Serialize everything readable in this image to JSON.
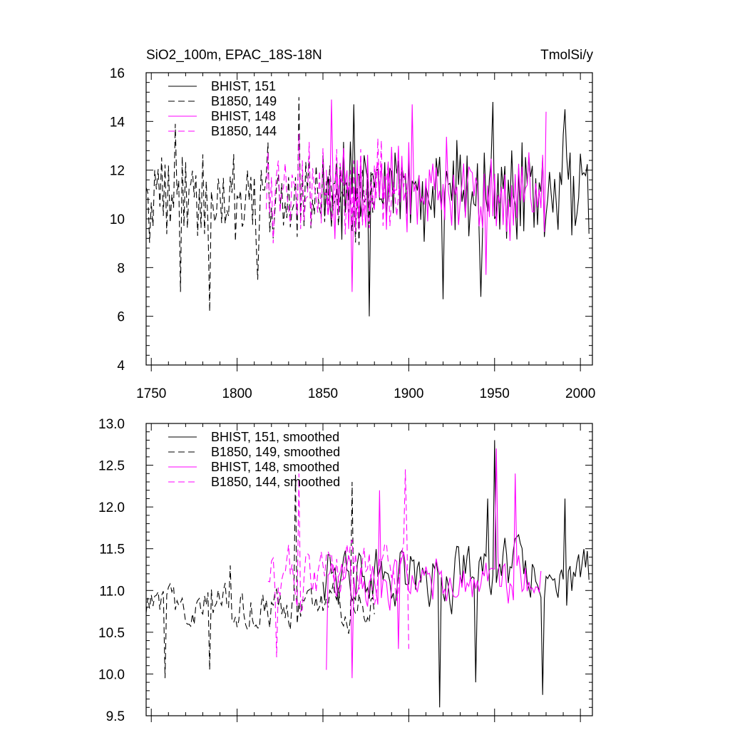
{
  "title_left": "SiO2_100m, EPAC_18S-18N",
  "title_right": "TmolSi/y",
  "colors": {
    "black": "#000000",
    "magenta": "#ff00ff"
  },
  "chart_data": [
    {
      "type": "line",
      "title": "SiO2_100m, EPAC_18S-18N",
      "units": "TmolSi/y",
      "xlim": [
        1747,
        2007
      ],
      "ylim": [
        4,
        16
      ],
      "xticks": [
        1750,
        1800,
        1850,
        1900,
        1950,
        2000
      ],
      "yticks": [
        4,
        6,
        8,
        10,
        12,
        14,
        16
      ],
      "legend_position": "top-left",
      "series": [
        {
          "name": "BHIST, 151",
          "color": "#000000",
          "dash": "solid",
          "generator": "annual",
          "x_start": 1850,
          "x_end": 2005,
          "mean": 11.0,
          "amplitude": 2.2,
          "seed": 151,
          "peaks": [
            [
              1868,
              14.7
            ],
            [
              1949,
              14.8
            ],
            [
              1991,
              14.5
            ]
          ],
          "troughs": [
            [
              1877,
              6.0
            ],
            [
              1920,
              6.7
            ],
            [
              1942,
              6.8
            ]
          ]
        },
        {
          "name": "B1850, 149",
          "color": "#000000",
          "dash": "dashed",
          "generator": "annual",
          "x_start": 1747,
          "x_end": 1880,
          "mean": 10.9,
          "amplitude": 2.0,
          "seed": 149,
          "peaks": [
            [
              1764,
              13.9
            ],
            [
              1836,
              15.0
            ]
          ],
          "troughs": [
            [
              1767,
              7.0
            ],
            [
              1784,
              6.2
            ],
            [
              1812,
              7.5
            ]
          ]
        },
        {
          "name": "BHIST, 148",
          "color": "#ff00ff",
          "dash": "solid",
          "generator": "annual",
          "x_start": 1852,
          "x_end": 1980,
          "mean": 11.2,
          "amplitude": 2.0,
          "seed": 148,
          "peaks": [
            [
              1855,
              14.9
            ],
            [
              1902,
              14.7
            ],
            [
              1980,
              14.4
            ]
          ],
          "troughs": [
            [
              1867,
              7.0
            ],
            [
              1945,
              7.7
            ]
          ]
        },
        {
          "name": "B1850, 144",
          "color": "#ff00ff",
          "dash": "dashed",
          "generator": "annual",
          "x_start": 1817,
          "x_end": 1900,
          "mean": 11.1,
          "amplitude": 2.0,
          "seed": 144,
          "peaks": [
            [
              1836,
              13.5
            ],
            [
              1882,
              13.3
            ]
          ],
          "troughs": [
            [
              1821,
              9.0
            ]
          ]
        }
      ]
    },
    {
      "type": "line",
      "title": "",
      "xlim": [
        1747,
        2007
      ],
      "ylim": [
        9.5,
        13.0
      ],
      "xticks": [
        1750,
        1800,
        1850,
        1900,
        1950,
        2000
      ],
      "yticks": [
        9.5,
        10.0,
        10.5,
        11.0,
        11.5,
        12.0,
        12.5,
        13.0
      ],
      "ytick_labels": [
        "9.5",
        "10.0",
        "10.5",
        "11.0",
        "11.5",
        "12.0",
        "12.5",
        "13.0"
      ],
      "legend_position": "top-left",
      "series": [
        {
          "name": "BHIST, 151, smoothed",
          "color": "#000000",
          "dash": "solid",
          "generator": "smooth",
          "x_start": 1850,
          "x_end": 2005,
          "mean": 11.2,
          "amplitude": 0.5,
          "seed": 251,
          "peaks": [
            [
              1950,
              12.8
            ],
            [
              1946,
              12.1
            ],
            [
              1991,
              12.1
            ]
          ],
          "troughs": [
            [
              1918,
              9.6
            ],
            [
              1978,
              9.75
            ],
            [
              1939,
              9.9
            ]
          ]
        },
        {
          "name": "B1850, 149, smoothed",
          "color": "#000000",
          "dash": "dashed",
          "generator": "smooth",
          "x_start": 1747,
          "x_end": 1880,
          "mean": 10.8,
          "amplitude": 0.35,
          "seed": 249,
          "peaks": [
            [
              1834,
              12.4
            ],
            [
              1867,
              12.3
            ],
            [
              1796,
              11.3
            ]
          ],
          "troughs": [
            [
              1758,
              9.95
            ],
            [
              1784,
              10.05
            ]
          ]
        },
        {
          "name": "BHIST, 148, smoothed",
          "color": "#ff00ff",
          "dash": "solid",
          "generator": "smooth",
          "x_start": 1852,
          "x_end": 1977,
          "mean": 11.1,
          "amplitude": 0.4,
          "seed": 248,
          "peaks": [
            [
              1951,
              12.7
            ],
            [
              1883,
              12.2
            ],
            [
              1962,
              12.4
            ]
          ],
          "troughs": [
            [
              1852,
              10.05
            ],
            [
              1867,
              9.95
            ],
            [
              1894,
              10.3
            ]
          ]
        },
        {
          "name": "B1850, 144, smoothed",
          "color": "#ff00ff",
          "dash": "dashed",
          "generator": "smooth",
          "x_start": 1818,
          "x_end": 1900,
          "mean": 11.2,
          "amplitude": 0.45,
          "seed": 244,
          "peaks": [
            [
              1836,
              12.4
            ],
            [
              1898,
              12.45
            ]
          ],
          "troughs": [
            [
              1823,
              10.2
            ],
            [
              1900,
              10.3
            ]
          ]
        }
      ]
    }
  ]
}
